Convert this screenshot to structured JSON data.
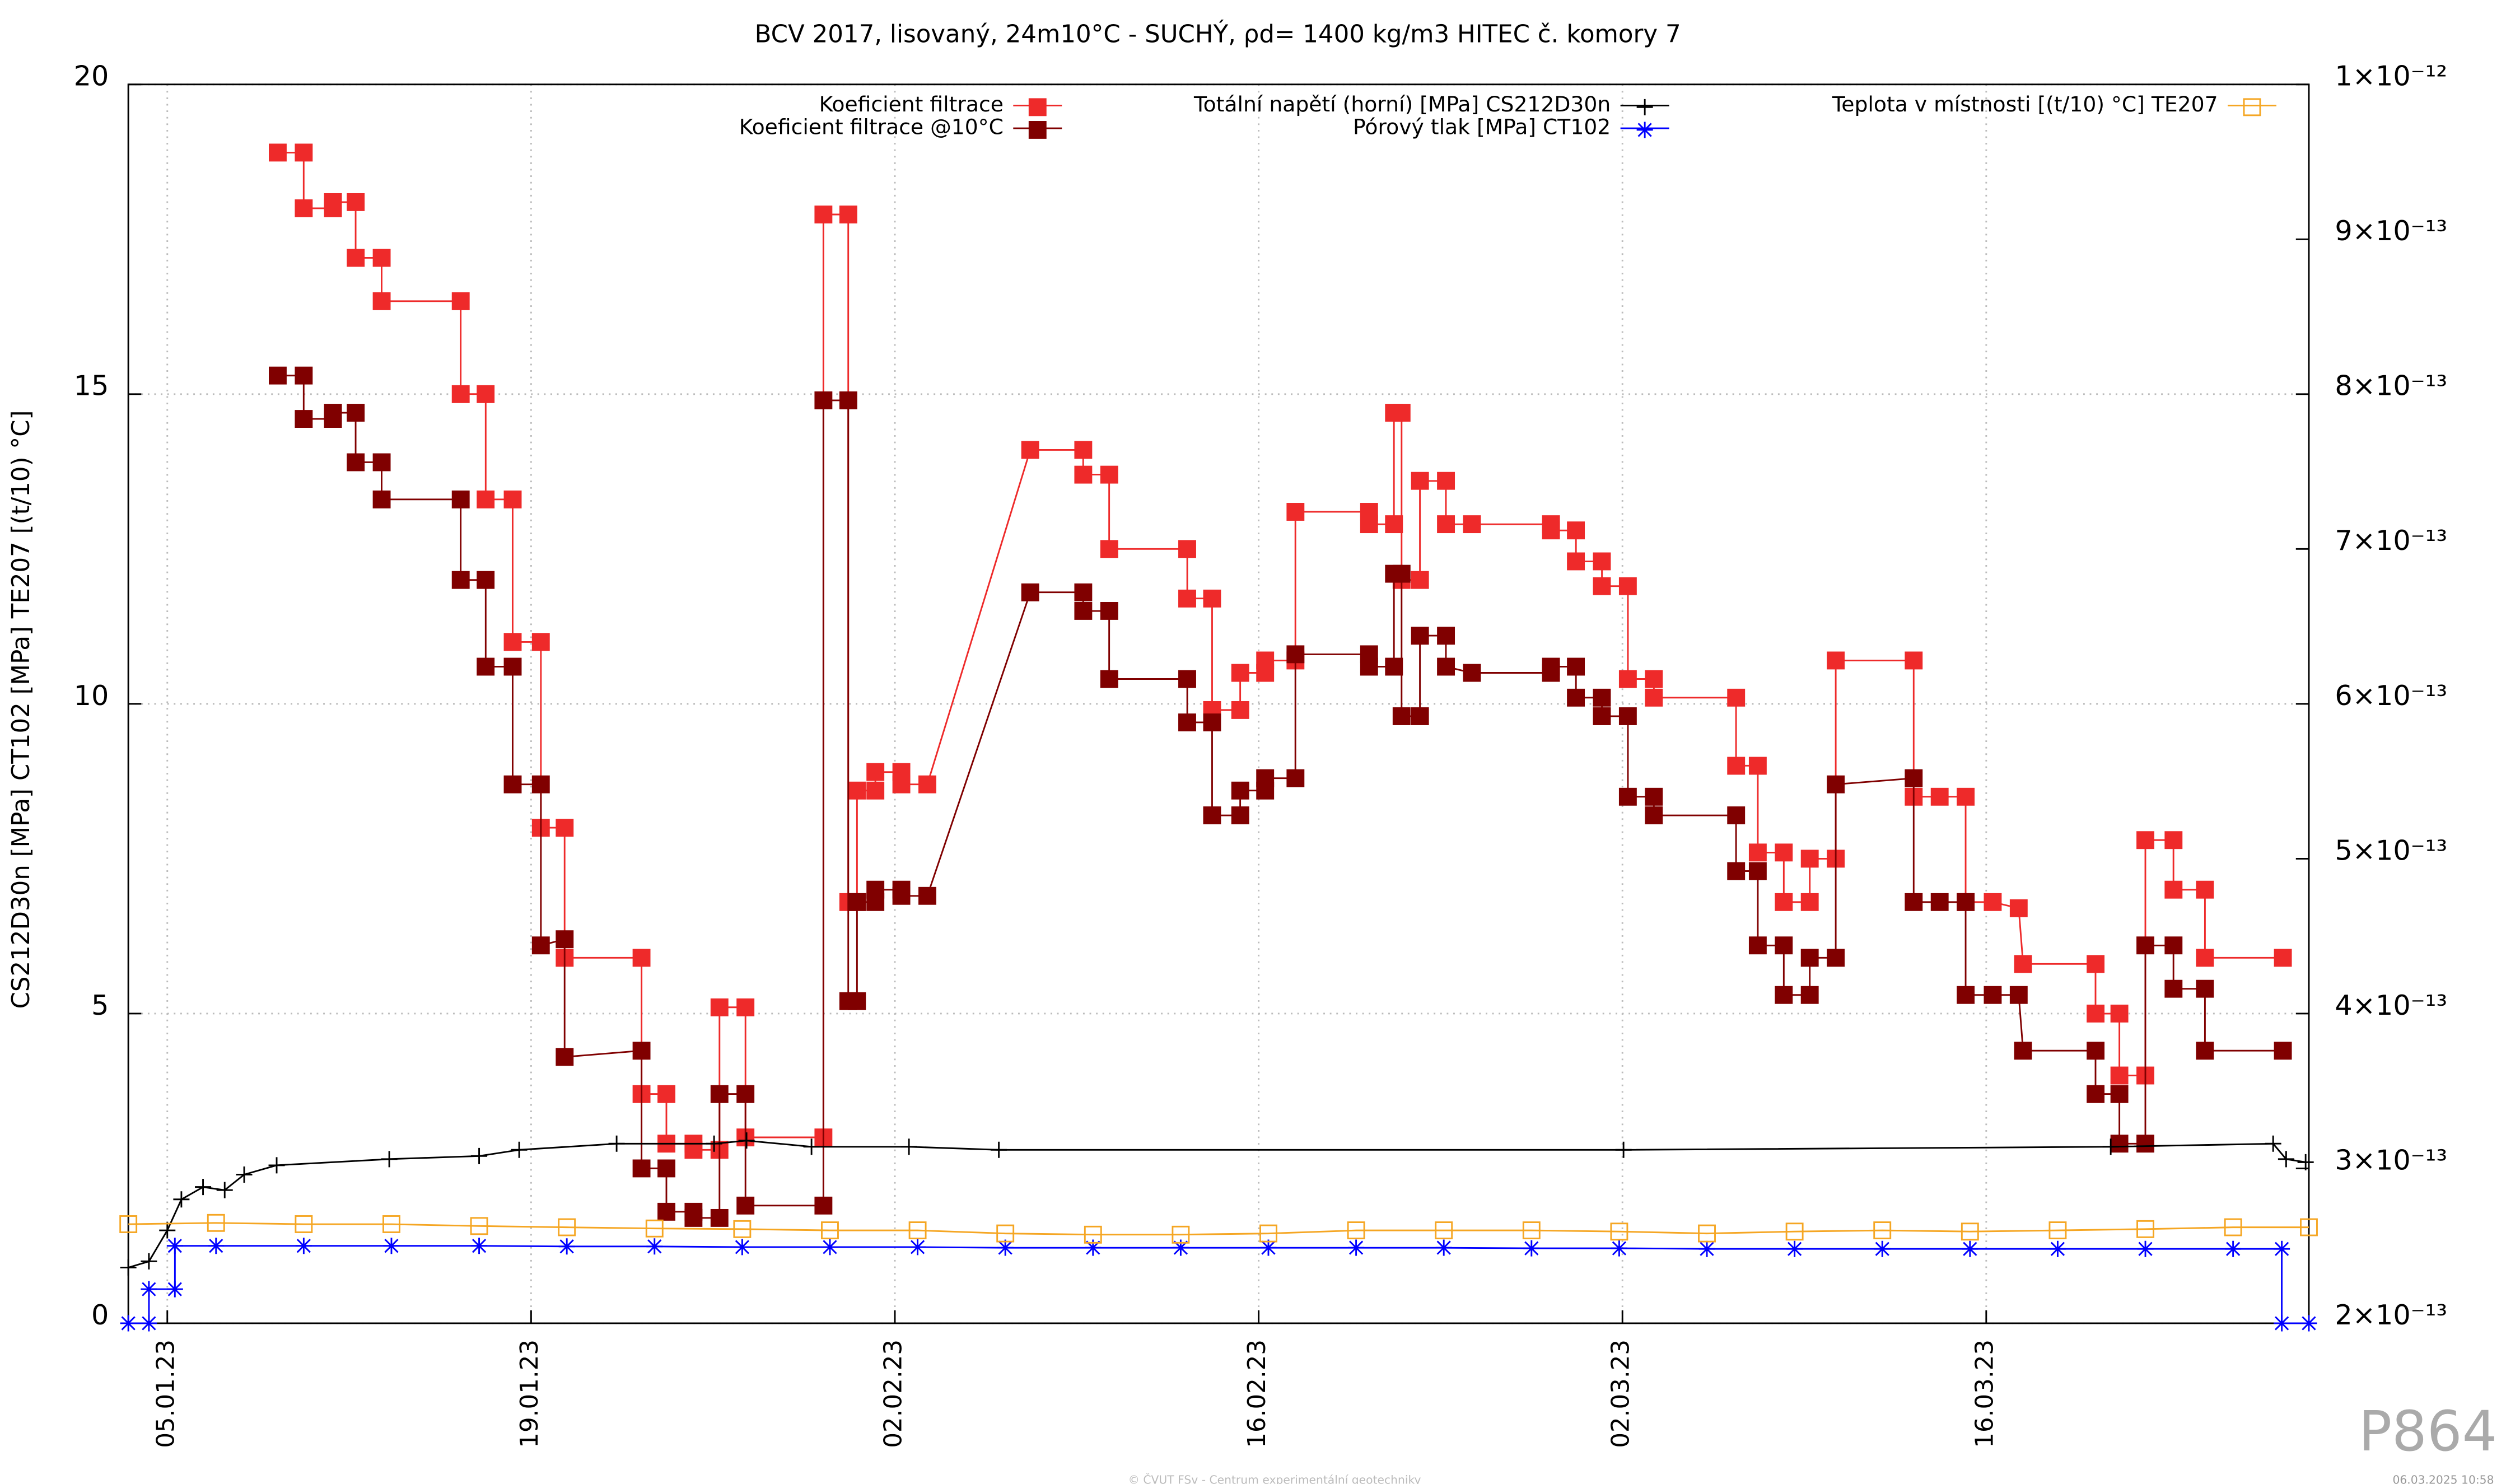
{
  "chart_data": {
    "type": "line",
    "title": "BCV 2017, lisovaný, 24m10°C - SUCHÝ, ρd= 1400 kg/m3 HITEC č. komory 7",
    "ylabel": "CS212D30n [MPa] CT102 [MPa] TE207 [(t/10) °C]",
    "footer": "© ČVUT FSv - Centrum experimentální geotechniky",
    "timestamp": "06.03.2025 10:58",
    "code": "P864",
    "grid": true,
    "xlim": [
      "2023-01-03T12:00",
      "2023-03-28T10:00"
    ],
    "xticks": [
      {
        "value": "2023-01-05T00:00",
        "label": "05.01.23"
      },
      {
        "value": "2023-01-19T00:00",
        "label": "19.01.23"
      },
      {
        "value": "2023-02-02T00:00",
        "label": "02.02.23"
      },
      {
        "value": "2023-02-16T00:00",
        "label": "16.02.23"
      },
      {
        "value": "2023-03-02T00:00",
        "label": "02.03.23"
      },
      {
        "value": "2023-03-16T00:00",
        "label": "16.03.23"
      }
    ],
    "ylim": [
      0,
      20
    ],
    "yticks": [
      0,
      5,
      10,
      15,
      20
    ],
    "y2lim": [
      2e-13,
      1e-12
    ],
    "y2ticks": [
      {
        "value": 2e-13,
        "label": "2×10⁻¹³"
      },
      {
        "value": 3e-13,
        "label": "3×10⁻¹³"
      },
      {
        "value": 4e-13,
        "label": "4×10⁻¹³"
      },
      {
        "value": 5e-13,
        "label": "5×10⁻¹³"
      },
      {
        "value": 6e-13,
        "label": "6×10⁻¹³"
      },
      {
        "value": 7e-13,
        "label": "7×10⁻¹³"
      },
      {
        "value": 8e-13,
        "label": "8×10⁻¹³"
      },
      {
        "value": 9e-13,
        "label": "9×10⁻¹³"
      },
      {
        "value": 1e-12,
        "label": "1×10⁻¹²"
      }
    ],
    "series": [
      {
        "name": "Koeficient filtrace",
        "color": "#ee2a2a",
        "axis": "y2",
        "marker": "square",
        "x": [
          "2023-01-09T06:00",
          "2023-01-10T06:00",
          "2023-01-10T06:00",
          "2023-01-11T09:00",
          "2023-01-11T09:00",
          "2023-01-12T06:00",
          "2023-01-12T06:00",
          "2023-01-13T06:00",
          "2023-01-13T06:00",
          "2023-01-16T07:00",
          "2023-01-16T07:00",
          "2023-01-17T06:00",
          "2023-01-17T06:00",
          "2023-01-18T07:00",
          "2023-01-18T07:00",
          "2023-01-19T09:00",
          "2023-01-19T09:00",
          "2023-01-20T07:00",
          "2023-01-20T07:00",
          "2023-01-23T06:00",
          "2023-01-23T06:00",
          "2023-01-24T05:00",
          "2023-01-24T05:00",
          "2023-01-25T06:00",
          "2023-01-25T06:00",
          "2023-01-26T06:00",
          "2023-01-26T06:00",
          "2023-01-27T06:00",
          "2023-01-27T06:00",
          "2023-01-30T06:00",
          "2023-01-30T06:00",
          "2023-01-31T05:00",
          "2023-01-31T05:00",
          "2023-01-31T13:00",
          "2023-01-31T13:00",
          "2023-02-01T06:00",
          "2023-02-01T06:00",
          "2023-02-02T06:00",
          "2023-02-02T06:00",
          "2023-02-03T06:00",
          "2023-02-07T05:00",
          "2023-02-09T06:00",
          "2023-02-09T06:00",
          "2023-02-10T06:00",
          "2023-02-10T06:00",
          "2023-02-13T06:00",
          "2023-02-13T06:00",
          "2023-02-14T05:00",
          "2023-02-14T05:00",
          "2023-02-15T07:00",
          "2023-02-15T07:00",
          "2023-02-16T06:00",
          "2023-02-16T06:00",
          "2023-02-17T10:00",
          "2023-02-17T10:00",
          "2023-02-20T06:00",
          "2023-02-20T06:00",
          "2023-02-21T05:00",
          "2023-02-21T05:00",
          "2023-02-21T12:00",
          "2023-02-21T12:00",
          "2023-02-22T05:00",
          "2023-02-22T05:00",
          "2023-02-23T05:00",
          "2023-02-23T05:00",
          "2023-02-24T05:00",
          "2023-02-27T06:00",
          "2023-02-27T06:00",
          "2023-02-28T05:00",
          "2023-02-28T05:00",
          "2023-03-01T05:00",
          "2023-03-01T05:00",
          "2023-03-02T05:00",
          "2023-03-02T05:00",
          "2023-03-03T05:00",
          "2023-03-03T05:00",
          "2023-03-06T09:00",
          "2023-03-06T09:00",
          "2023-03-07T05:00",
          "2023-03-07T05:00",
          "2023-03-08T05:00",
          "2023-03-08T05:00",
          "2023-03-09T05:00",
          "2023-03-09T05:00",
          "2023-03-10T05:00",
          "2023-03-10T05:00",
          "2023-03-13T05:00",
          "2023-03-13T05:00",
          "2023-03-14T05:00",
          "2023-03-15T05:00",
          "2023-03-15T05:00",
          "2023-03-16T06:00",
          "2023-03-17T06:00",
          "2023-03-17T10:00",
          "2023-03-20T05:00",
          "2023-03-20T05:00",
          "2023-03-21T03:00",
          "2023-03-21T03:00",
          "2023-03-22T03:00",
          "2023-03-22T03:00",
          "2023-03-23T05:00",
          "2023-03-23T05:00",
          "2023-03-24T10:00",
          "2023-03-24T10:00",
          "2023-03-27T10:00"
        ],
        "values": [
          9.56e-13,
          9.56e-13,
          9.2e-13,
          9.2e-13,
          9.24e-13,
          9.24e-13,
          8.88e-13,
          8.88e-13,
          8.6e-13,
          8.6e-13,
          8e-13,
          8e-13,
          7.32e-13,
          7.32e-13,
          6.4e-13,
          6.4e-13,
          5.2e-13,
          5.2e-13,
          4.36e-13,
          4.36e-13,
          3.48e-13,
          3.48e-13,
          3.16e-13,
          3.16e-13,
          3.12e-13,
          3.12e-13,
          4.04e-13,
          4.04e-13,
          3.2e-13,
          3.2e-13,
          9.16e-13,
          9.16e-13,
          4.72e-13,
          4.72e-13,
          5.44e-13,
          5.44e-13,
          5.56e-13,
          5.56e-13,
          5.48e-13,
          5.48e-13,
          7.64e-13,
          7.64e-13,
          7.48e-13,
          7.48e-13,
          7e-13,
          7e-13,
          6.68e-13,
          6.68e-13,
          5.96e-13,
          5.96e-13,
          6.2e-13,
          6.2e-13,
          6.28e-13,
          6.28e-13,
          7.24e-13,
          7.24e-13,
          7.16e-13,
          7.16e-13,
          7.88e-13,
          7.88e-13,
          6.8e-13,
          6.8e-13,
          7.44e-13,
          7.44e-13,
          7.16e-13,
          7.16e-13,
          7.16e-13,
          7.12e-13,
          7.12e-13,
          6.92e-13,
          6.92e-13,
          6.76e-13,
          6.76e-13,
          6.16e-13,
          6.16e-13,
          6.04e-13,
          6.04e-13,
          5.6e-13,
          5.6e-13,
          5.04e-13,
          5.04e-13,
          4.72e-13,
          4.72e-13,
          5e-13,
          5e-13,
          6.28e-13,
          6.28e-13,
          5.4e-13,
          5.4e-13,
          5.4e-13,
          4.72e-13,
          4.72e-13,
          4.68e-13,
          4.32e-13,
          4.32e-13,
          4e-13,
          4e-13,
          3.6e-13,
          3.6e-13,
          5.12e-13,
          5.12e-13,
          4.8e-13,
          4.8e-13,
          4.36e-13,
          4.36e-13
        ]
      },
      {
        "name": "Koeficient filtrace @10°C",
        "color": "#800000",
        "axis": "y2",
        "marker": "square",
        "x": [
          "2023-01-09T06:00",
          "2023-01-10T06:00",
          "2023-01-10T06:00",
          "2023-01-11T09:00",
          "2023-01-11T09:00",
          "2023-01-12T06:00",
          "2023-01-12T06:00",
          "2023-01-13T06:00",
          "2023-01-13T06:00",
          "2023-01-16T07:00",
          "2023-01-16T07:00",
          "2023-01-17T06:00",
          "2023-01-17T06:00",
          "2023-01-18T07:00",
          "2023-01-18T07:00",
          "2023-01-19T09:00",
          "2023-01-19T09:00",
          "2023-01-20T07:00",
          "2023-01-20T07:00",
          "2023-01-23T06:00",
          "2023-01-23T06:00",
          "2023-01-24T05:00",
          "2023-01-24T05:00",
          "2023-01-25T06:00",
          "2023-01-25T06:00",
          "2023-01-26T06:00",
          "2023-01-26T06:00",
          "2023-01-27T06:00",
          "2023-01-27T06:00",
          "2023-01-30T06:00",
          "2023-01-30T06:00",
          "2023-01-31T05:00",
          "2023-01-31T05:00",
          "2023-01-31T13:00",
          "2023-01-31T13:00",
          "2023-02-01T06:00",
          "2023-02-01T06:00",
          "2023-02-02T06:00",
          "2023-02-02T06:00",
          "2023-02-03T06:00",
          "2023-02-07T05:00",
          "2023-02-09T06:00",
          "2023-02-09T06:00",
          "2023-02-10T06:00",
          "2023-02-10T06:00",
          "2023-02-13T06:00",
          "2023-02-13T06:00",
          "2023-02-14T05:00",
          "2023-02-14T05:00",
          "2023-02-15T07:00",
          "2023-02-15T07:00",
          "2023-02-16T06:00",
          "2023-02-16T06:00",
          "2023-02-17T10:00",
          "2023-02-17T10:00",
          "2023-02-20T06:00",
          "2023-02-20T06:00",
          "2023-02-21T05:00",
          "2023-02-21T05:00",
          "2023-02-21T12:00",
          "2023-02-21T12:00",
          "2023-02-22T05:00",
          "2023-02-22T05:00",
          "2023-02-23T05:00",
          "2023-02-23T05:00",
          "2023-02-24T05:00",
          "2023-02-27T06:00",
          "2023-02-27T06:00",
          "2023-02-28T05:00",
          "2023-02-28T05:00",
          "2023-03-01T05:00",
          "2023-03-01T05:00",
          "2023-03-02T05:00",
          "2023-03-02T05:00",
          "2023-03-03T05:00",
          "2023-03-03T05:00",
          "2023-03-06T09:00",
          "2023-03-06T09:00",
          "2023-03-07T05:00",
          "2023-03-07T05:00",
          "2023-03-08T05:00",
          "2023-03-08T05:00",
          "2023-03-09T05:00",
          "2023-03-09T05:00",
          "2023-03-10T05:00",
          "2023-03-10T05:00",
          "2023-03-13T05:00",
          "2023-03-13T05:00",
          "2023-03-14T05:00",
          "2023-03-15T05:00",
          "2023-03-15T05:00",
          "2023-03-16T06:00",
          "2023-03-17T06:00",
          "2023-03-17T10:00",
          "2023-03-20T05:00",
          "2023-03-20T05:00",
          "2023-03-21T03:00",
          "2023-03-21T03:00",
          "2023-03-22T03:00",
          "2023-03-22T03:00",
          "2023-03-23T05:00",
          "2023-03-23T05:00",
          "2023-03-24T10:00",
          "2023-03-24T10:00",
          "2023-03-27T10:00"
        ],
        "values": [
          8.12e-13,
          8.12e-13,
          7.84e-13,
          7.84e-13,
          7.88e-13,
          7.88e-13,
          7.56e-13,
          7.56e-13,
          7.32e-13,
          7.32e-13,
          6.8e-13,
          6.8e-13,
          6.24e-13,
          6.24e-13,
          5.48e-13,
          5.48e-13,
          4.44e-13,
          4.48e-13,
          3.72e-13,
          3.76e-13,
          3e-13,
          3e-13,
          2.72e-13,
          2.72e-13,
          2.68e-13,
          2.68e-13,
          3.48e-13,
          3.48e-13,
          2.76e-13,
          2.76e-13,
          7.96e-13,
          7.96e-13,
          4.08e-13,
          4.08e-13,
          4.72e-13,
          4.72e-13,
          4.8e-13,
          4.8e-13,
          4.76e-13,
          4.76e-13,
          6.72e-13,
          6.72e-13,
          6.6e-13,
          6.6e-13,
          6.16e-13,
          6.16e-13,
          5.88e-13,
          5.88e-13,
          5.28e-13,
          5.28e-13,
          5.44e-13,
          5.44e-13,
          5.52e-13,
          5.52e-13,
          6.32e-13,
          6.32e-13,
          6.24e-13,
          6.24e-13,
          6.84e-13,
          6.84e-13,
          5.92e-13,
          5.92e-13,
          6.44e-13,
          6.44e-13,
          6.24e-13,
          6.2e-13,
          6.2e-13,
          6.24e-13,
          6.24e-13,
          6.04e-13,
          6.04e-13,
          5.92e-13,
          5.92e-13,
          5.4e-13,
          5.4e-13,
          5.28e-13,
          5.28e-13,
          4.92e-13,
          4.92e-13,
          4.44e-13,
          4.44e-13,
          4.12e-13,
          4.12e-13,
          4.36e-13,
          4.36e-13,
          5.48e-13,
          5.52e-13,
          4.72e-13,
          4.72e-13,
          4.72e-13,
          4.12e-13,
          4.12e-13,
          4.12e-13,
          3.76e-13,
          3.76e-13,
          3.48e-13,
          3.48e-13,
          3.16e-13,
          3.16e-13,
          4.44e-13,
          4.44e-13,
          4.16e-13,
          4.16e-13,
          3.76e-13,
          3.76e-13
        ]
      },
      {
        "name": "Totální napětí (horní) [MPa] CS212D30n",
        "color": "#000000",
        "marker": "plus",
        "x": [
          "2023-01-03T12:00",
          "2023-01-04T07:00",
          "2023-01-05T00:00",
          "2023-01-05T13:00",
          "2023-01-06T09:00",
          "2023-01-07T05:00",
          "2023-01-07T23:00",
          "2023-01-09T05:00",
          "2023-01-13T13:00",
          "2023-01-17T00:00",
          "2023-01-18T13:00",
          "2023-01-22T07:00",
          "2023-01-26T01:00",
          "2023-01-27T07:00",
          "2023-01-29T19:00",
          "2023-02-02T13:00",
          "2023-02-06T00:00",
          "2023-03-02T01:00",
          "2023-03-20T19:00",
          "2023-03-27T01:00",
          "2023-03-27T13:00",
          "2023-03-28T07:00"
        ],
        "values": [
          0.9,
          1.0,
          1.5,
          2.0,
          2.2,
          2.15,
          2.4,
          2.55,
          2.65,
          2.7,
          2.8,
          2.9,
          2.9,
          2.95,
          2.85,
          2.85,
          2.8,
          2.8,
          2.85,
          2.9,
          2.65,
          2.6
        ]
      },
      {
        "name": "Pórový tlak [MPa] CT102",
        "color": "#0000ff",
        "marker": "star",
        "x": [
          "2023-01-03T12:00",
          "2023-01-04T07:00",
          "2023-01-04T07:00",
          "2023-01-05T07:00",
          "2023-01-05T07:00",
          "2023-01-06T21:00",
          "2023-01-10T06:00",
          "2023-01-13T15:00",
          "2023-01-17T00:00",
          "2023-01-20T09:00",
          "2023-01-23T18:00",
          "2023-01-27T03:00",
          "2023-01-30T12:00",
          "2023-02-02T21:00",
          "2023-02-06T06:00",
          "2023-02-09T15:00",
          "2023-02-13T00:00",
          "2023-02-16T09:00",
          "2023-02-19T18:00",
          "2023-02-23T03:00",
          "2023-02-26T12:00",
          "2023-03-01T21:00",
          "2023-03-05T06:00",
          "2023-03-08T15:00",
          "2023-03-12T00:00",
          "2023-03-15T09:00",
          "2023-03-18T18:00",
          "2023-03-22T03:00",
          "2023-03-25T12:00",
          "2023-03-27T09:00",
          "2023-03-27T09:00",
          "2023-03-28T10:00"
        ],
        "values": [
          0,
          0,
          0.55,
          0.55,
          1.25,
          1.25,
          1.25,
          1.25,
          1.25,
          1.24,
          1.24,
          1.23,
          1.23,
          1.23,
          1.22,
          1.22,
          1.22,
          1.22,
          1.22,
          1.22,
          1.21,
          1.21,
          1.2,
          1.2,
          1.2,
          1.2,
          1.2,
          1.2,
          1.2,
          1.2,
          0,
          0
        ]
      },
      {
        "name": "Teplota v místnosti [(t/10) °C] TE207",
        "color": "#f5a623",
        "marker": "open-square",
        "x": [
          "2023-01-03T12:00",
          "2023-01-06T21:00",
          "2023-01-10T06:00",
          "2023-01-13T15:00",
          "2023-01-17T00:00",
          "2023-01-20T09:00",
          "2023-01-23T18:00",
          "2023-01-27T03:00",
          "2023-01-30T12:00",
          "2023-02-02T21:00",
          "2023-02-06T06:00",
          "2023-02-09T15:00",
          "2023-02-13T00:00",
          "2023-02-16T09:00",
          "2023-02-19T18:00",
          "2023-02-23T03:00",
          "2023-02-26T12:00",
          "2023-03-01T21:00",
          "2023-03-05T06:00",
          "2023-03-08T15:00",
          "2023-03-12T00:00",
          "2023-03-15T09:00",
          "2023-03-18T18:00",
          "2023-03-22T03:00",
          "2023-03-25T12:00",
          "2023-03-28T10:00"
        ],
        "values": [
          1.6,
          1.62,
          1.6,
          1.6,
          1.57,
          1.55,
          1.53,
          1.52,
          1.5,
          1.5,
          1.45,
          1.43,
          1.43,
          1.45,
          1.5,
          1.5,
          1.5,
          1.48,
          1.45,
          1.48,
          1.5,
          1.48,
          1.5,
          1.52,
          1.55,
          1.55
        ]
      }
    ]
  }
}
